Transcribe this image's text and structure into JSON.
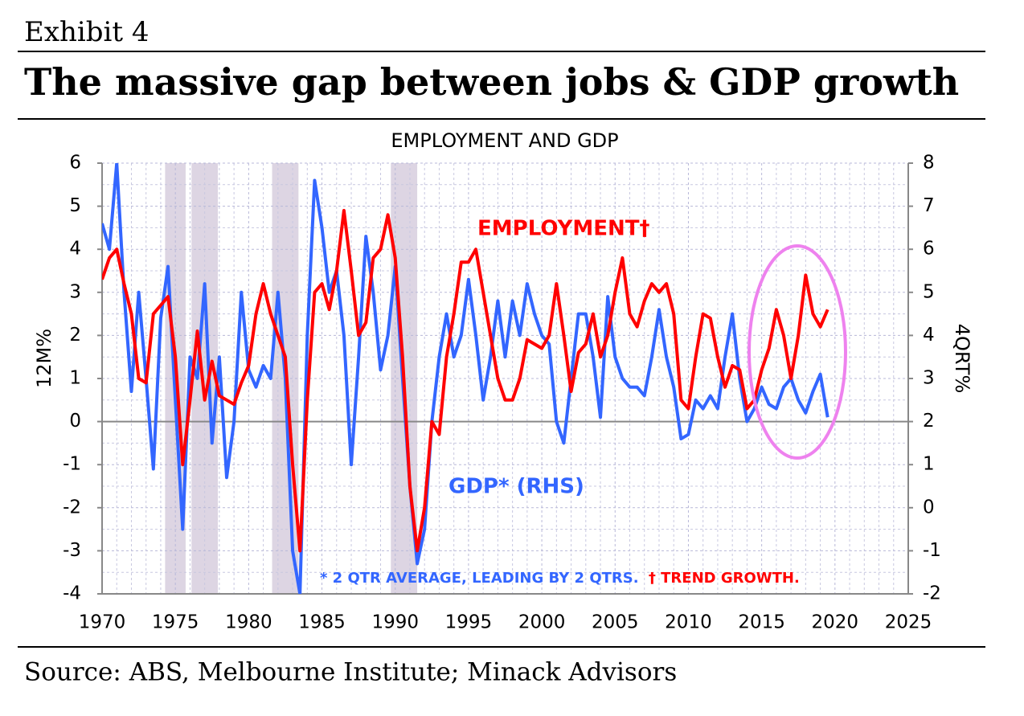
{
  "header": {
    "exhibit": "Exhibit 4",
    "title": "The massive gap between jobs & GDP growth"
  },
  "chart_data": {
    "type": "line",
    "title": "EMPLOYMENT AND GDP",
    "y_label": "12M%",
    "y2_label": "4QRT%",
    "xlim": [
      1970,
      2025
    ],
    "xticks": [
      1970,
      1975,
      1980,
      1985,
      1990,
      1995,
      2000,
      2005,
      2010,
      2015,
      2020,
      2025
    ],
    "ylim": [
      -4,
      6
    ],
    "yticks": [
      -4,
      -3,
      -2,
      -1,
      0,
      1,
      2,
      3,
      4,
      5,
      6
    ],
    "y2lim": [
      -2,
      8
    ],
    "y2ticks": [
      -2,
      -1,
      0,
      1,
      2,
      3,
      4,
      5,
      6,
      7,
      8
    ],
    "grid": true,
    "shaded_periods": [
      [
        1974.3,
        1975.7
      ],
      [
        1976.1,
        1977.9
      ],
      [
        1981.6,
        1983.4
      ],
      [
        1989.7,
        1991.5
      ]
    ],
    "shade_color": "#ddd5e3",
    "x": [
      1970,
      1970.5,
      1971,
      1971.5,
      1972,
      1972.5,
      1973,
      1973.5,
      1974,
      1974.5,
      1975,
      1975.5,
      1976,
      1976.5,
      1977,
      1977.5,
      1978,
      1978.5,
      1979,
      1979.5,
      1980,
      1980.5,
      1981,
      1981.5,
      1982,
      1982.5,
      1983,
      1983.5,
      1984,
      1984.5,
      1985,
      1985.5,
      1986,
      1986.5,
      1987,
      1987.5,
      1988,
      1988.5,
      1989,
      1989.5,
      1990,
      1990.5,
      1991,
      1991.5,
      1992,
      1992.5,
      1993,
      1993.5,
      1994,
      1994.5,
      1995,
      1995.5,
      1996,
      1996.5,
      1997,
      1997.5,
      1998,
      1998.5,
      1999,
      1999.5,
      2000,
      2000.5,
      2001,
      2001.5,
      2002,
      2002.5,
      2003,
      2003.5,
      2004,
      2004.5,
      2005,
      2005.5,
      2006,
      2006.5,
      2007,
      2007.5,
      2008,
      2008.5,
      2009,
      2009.5,
      2010,
      2010.5,
      2011,
      2011.5,
      2012,
      2012.5,
      2013,
      2013.5,
      2014,
      2014.5,
      2015,
      2015.5,
      2016,
      2016.5,
      2017,
      2017.5,
      2018,
      2018.5,
      2019,
      2019.5
    ],
    "series": [
      {
        "name": "EMPLOYMENT†",
        "color": "#ff0000",
        "axis": "y",
        "values": [
          3.3,
          3.8,
          4.0,
          3.2,
          2.5,
          1.0,
          0.9,
          2.5,
          2.7,
          2.9,
          1.5,
          -1.0,
          0.5,
          2.1,
          0.5,
          1.4,
          0.6,
          0.5,
          0.4,
          0.9,
          1.3,
          2.5,
          3.2,
          2.5,
          2.0,
          1.5,
          -1.0,
          -3.0,
          0.5,
          3.0,
          3.2,
          2.6,
          3.5,
          4.9,
          3.5,
          2.0,
          2.3,
          3.8,
          4.0,
          4.8,
          3.8,
          1.5,
          -1.5,
          -3.0,
          -2.0,
          0.0,
          -0.3,
          1.5,
          2.5,
          3.7,
          3.7,
          4.0,
          3.0,
          2.0,
          1.0,
          0.5,
          0.5,
          1.0,
          1.9,
          1.8,
          1.7,
          2.0,
          3.2,
          2.0,
          0.7,
          1.6,
          1.8,
          2.5,
          1.5,
          2.0,
          3.0,
          3.8,
          2.5,
          2.2,
          2.8,
          3.2,
          3.0,
          3.2,
          2.5,
          0.5,
          0.3,
          1.5,
          2.5,
          2.4,
          1.5,
          0.8,
          1.3,
          1.2,
          0.3,
          0.5,
          1.2,
          1.7,
          2.6,
          2.0,
          1.0,
          2.0,
          3.4,
          2.5,
          2.2,
          2.6
        ]
      },
      {
        "name": "GDP* (RHS)",
        "color": "#3366ff",
        "axis": "y2",
        "values": [
          6.6,
          6.0,
          8.0,
          5.0,
          2.7,
          5.0,
          3.0,
          0.9,
          4.4,
          5.6,
          2.5,
          -0.5,
          3.5,
          3.0,
          5.2,
          1.5,
          3.5,
          0.7,
          2.0,
          5.0,
          3.2,
          2.8,
          3.3,
          3.0,
          5.0,
          3.0,
          -1.0,
          -2.0,
          4.0,
          7.6,
          6.5,
          5.0,
          5.5,
          4.0,
          1.0,
          3.5,
          6.3,
          5.0,
          3.2,
          4.0,
          5.6,
          3.0,
          0.5,
          -1.3,
          -0.5,
          2.0,
          3.5,
          4.5,
          3.5,
          4.0,
          5.3,
          4.0,
          2.5,
          3.5,
          4.8,
          3.5,
          4.8,
          4.0,
          5.2,
          4.5,
          4.0,
          3.8,
          2.0,
          1.5,
          3.0,
          4.5,
          4.5,
          3.5,
          2.1,
          4.9,
          3.5,
          3.0,
          2.8,
          2.8,
          2.6,
          3.5,
          4.6,
          3.5,
          2.8,
          1.6,
          1.7,
          2.5,
          2.3,
          2.6,
          2.3,
          3.5,
          4.5,
          3.0,
          2.0,
          2.3,
          2.8,
          2.4,
          2.3,
          2.8,
          3.0,
          2.5,
          2.2,
          2.7,
          3.1,
          2.1
        ]
      }
    ],
    "footnote_gdp": "* 2 QTR AVERAGE, LEADING BY 2 QTRS.",
    "footnote_emp": "† TREND GROWTH."
  },
  "source": "Source: ABS, Melbourne Institute; Minack Advisors"
}
